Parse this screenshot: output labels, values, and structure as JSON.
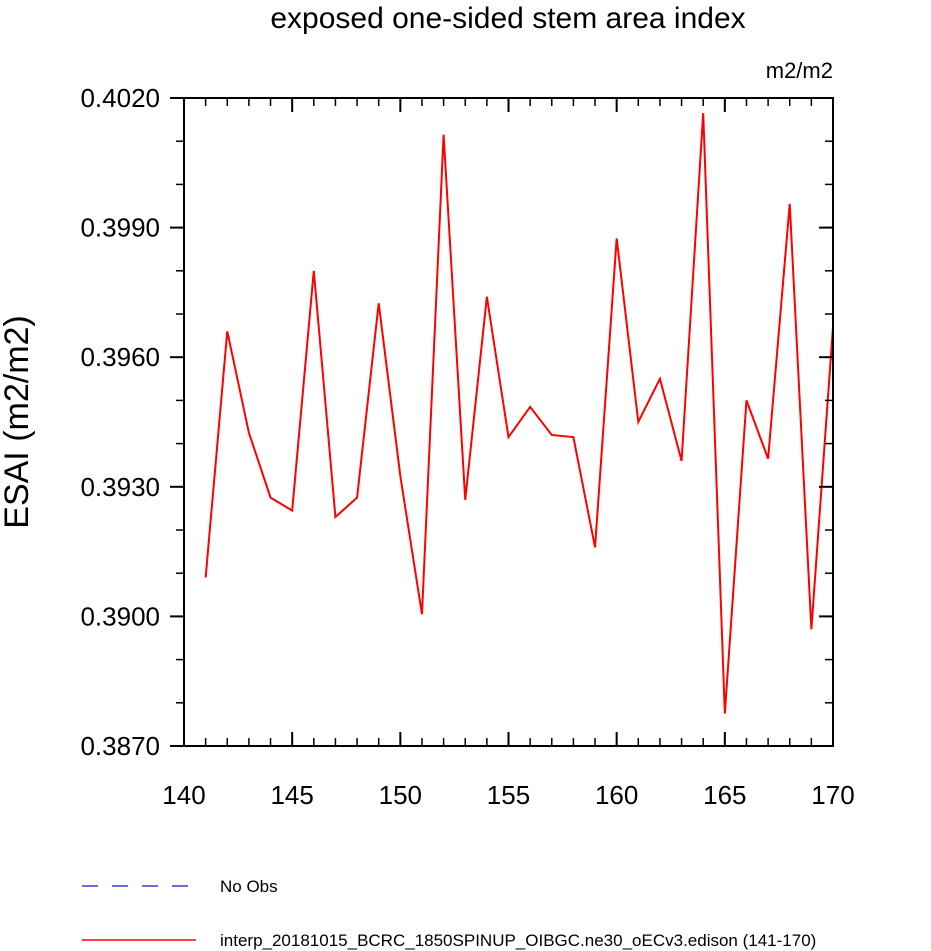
{
  "chart_data": {
    "type": "line",
    "title": "exposed one-sided stem area index",
    "units": "m2/m2",
    "ylabel": "ESAI  (m2/m2)",
    "xlabel": "",
    "xlim": [
      140,
      170
    ],
    "ylim": [
      0.387,
      0.402
    ],
    "x_ticks": [
      140,
      145,
      150,
      155,
      160,
      165,
      170
    ],
    "x_tick_labels": [
      "140",
      "145",
      "150",
      "155",
      "160",
      "165",
      "170"
    ],
    "y_ticks": [
      0.387,
      0.39,
      0.393,
      0.396,
      0.399,
      0.402
    ],
    "y_tick_labels": [
      "0.3870",
      "0.3900",
      "0.3930",
      "0.3960",
      "0.3990",
      "0.4020"
    ],
    "x_minor_step": 1,
    "y_minor_step": 0.001,
    "grid": false,
    "legend_position": "bottom",
    "series": [
      {
        "name": "No Obs",
        "color": "#3b3bd6",
        "dash": "dashed",
        "values": []
      },
      {
        "name": "interp_20181015_BCRC_1850SPINUP_OIBGC.ne30_oECv3.edison (141-170)",
        "color": "#ff0000",
        "dash": "solid",
        "x": [
          141,
          142,
          143,
          144,
          145,
          146,
          147,
          148,
          149,
          150,
          151,
          152,
          153,
          154,
          155,
          156,
          157,
          158,
          159,
          160,
          161,
          162,
          163,
          164,
          165,
          166,
          167,
          168,
          169,
          170
        ],
        "values": [
          0.3909,
          0.3966,
          0.39425,
          0.39275,
          0.39245,
          0.398,
          0.3923,
          0.39275,
          0.39725,
          0.39325,
          0.39005,
          0.40115,
          0.3927,
          0.3974,
          0.39415,
          0.39485,
          0.3942,
          0.39415,
          0.3916,
          0.39875,
          0.3945,
          0.3955,
          0.3936,
          0.40165,
          0.38775,
          0.395,
          0.39365,
          0.39955,
          0.3897,
          0.3967
        ]
      }
    ]
  }
}
